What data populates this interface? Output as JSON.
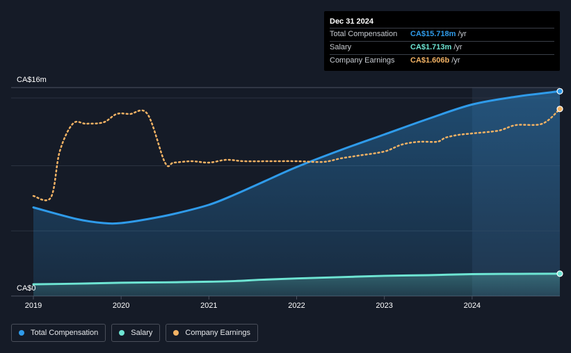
{
  "tooltip": {
    "date": "Dec 31 2024",
    "rows": [
      {
        "name": "Total Compensation",
        "value": "CA$15.718m",
        "unit": "/yr",
        "color": "#2f9bea"
      },
      {
        "name": "Salary",
        "value": "CA$1.713m",
        "unit": "/yr",
        "color": "#6ee5d3"
      },
      {
        "name": "Company Earnings",
        "value": "CA$1.606b",
        "unit": "/yr",
        "color": "#f2b264"
      }
    ]
  },
  "legend": [
    {
      "label": "Total Compensation",
      "color": "#2f9bea"
    },
    {
      "label": "Salary",
      "color": "#6ee5d3"
    },
    {
      "label": "Company Earnings",
      "color": "#f2b264"
    }
  ],
  "chart_data": {
    "type": "line",
    "y_top_label": "CA$16m",
    "y_bottom_label": "CA$0",
    "x_ticks": [
      "2019",
      "2020",
      "2021",
      "2022",
      "2023",
      "2024"
    ],
    "xlim": [
      2019.0,
      2025.0
    ],
    "ylim": [
      0,
      16
    ],
    "yunit": "CA$m",
    "highlight_start": 2024.0,
    "grid": true,
    "series": [
      {
        "name": "Total Compensation",
        "color": "#2f9bea",
        "area": true,
        "x": [
          2019.0,
          2019.5,
          2019.8,
          2020.0,
          2020.3,
          2020.6,
          2021.0,
          2021.3,
          2021.6,
          2022.0,
          2022.5,
          2023.0,
          2023.5,
          2024.0,
          2024.5,
          2025.0
        ],
        "values": [
          6.8,
          5.9,
          5.6,
          5.6,
          5.9,
          6.3,
          7.0,
          7.8,
          8.7,
          9.9,
          11.2,
          12.4,
          13.6,
          14.7,
          15.3,
          15.718
        ]
      },
      {
        "name": "Salary",
        "color": "#6ee5d3",
        "area": true,
        "x": [
          2019.0,
          2019.5,
          2020.0,
          2020.5,
          2021.0,
          2021.3,
          2021.6,
          2022.0,
          2022.5,
          2023.0,
          2023.5,
          2024.0,
          2024.5,
          2025.0
        ],
        "values": [
          0.9,
          0.95,
          1.02,
          1.05,
          1.1,
          1.15,
          1.25,
          1.35,
          1.45,
          1.55,
          1.6,
          1.68,
          1.7,
          1.713
        ]
      },
      {
        "name": "Company Earnings",
        "color": "#f2b264",
        "dotted": true,
        "unit_note": "plotted on secondary (unlabeled) scale, CA$ billions",
        "x": [
          2019.0,
          2019.2,
          2019.3,
          2019.45,
          2019.6,
          2019.8,
          2019.95,
          2020.1,
          2020.3,
          2020.5,
          2020.6,
          2020.8,
          2021.0,
          2021.2,
          2021.4,
          2021.7,
          2022.0,
          2022.3,
          2022.5,
          2022.7,
          2023.0,
          2023.2,
          2023.4,
          2023.6,
          2023.7,
          2023.85,
          2024.0,
          2024.3,
          2024.5,
          2024.8,
          2025.0
        ],
        "values": [
          0.98,
          0.97,
          1.3,
          1.5,
          1.5,
          1.51,
          1.57,
          1.57,
          1.57,
          1.22,
          1.22,
          1.23,
          1.22,
          1.24,
          1.23,
          1.23,
          1.23,
          1.225,
          1.25,
          1.27,
          1.3,
          1.35,
          1.37,
          1.37,
          1.4,
          1.42,
          1.43,
          1.45,
          1.49,
          1.5,
          1.606
        ]
      }
    ]
  }
}
